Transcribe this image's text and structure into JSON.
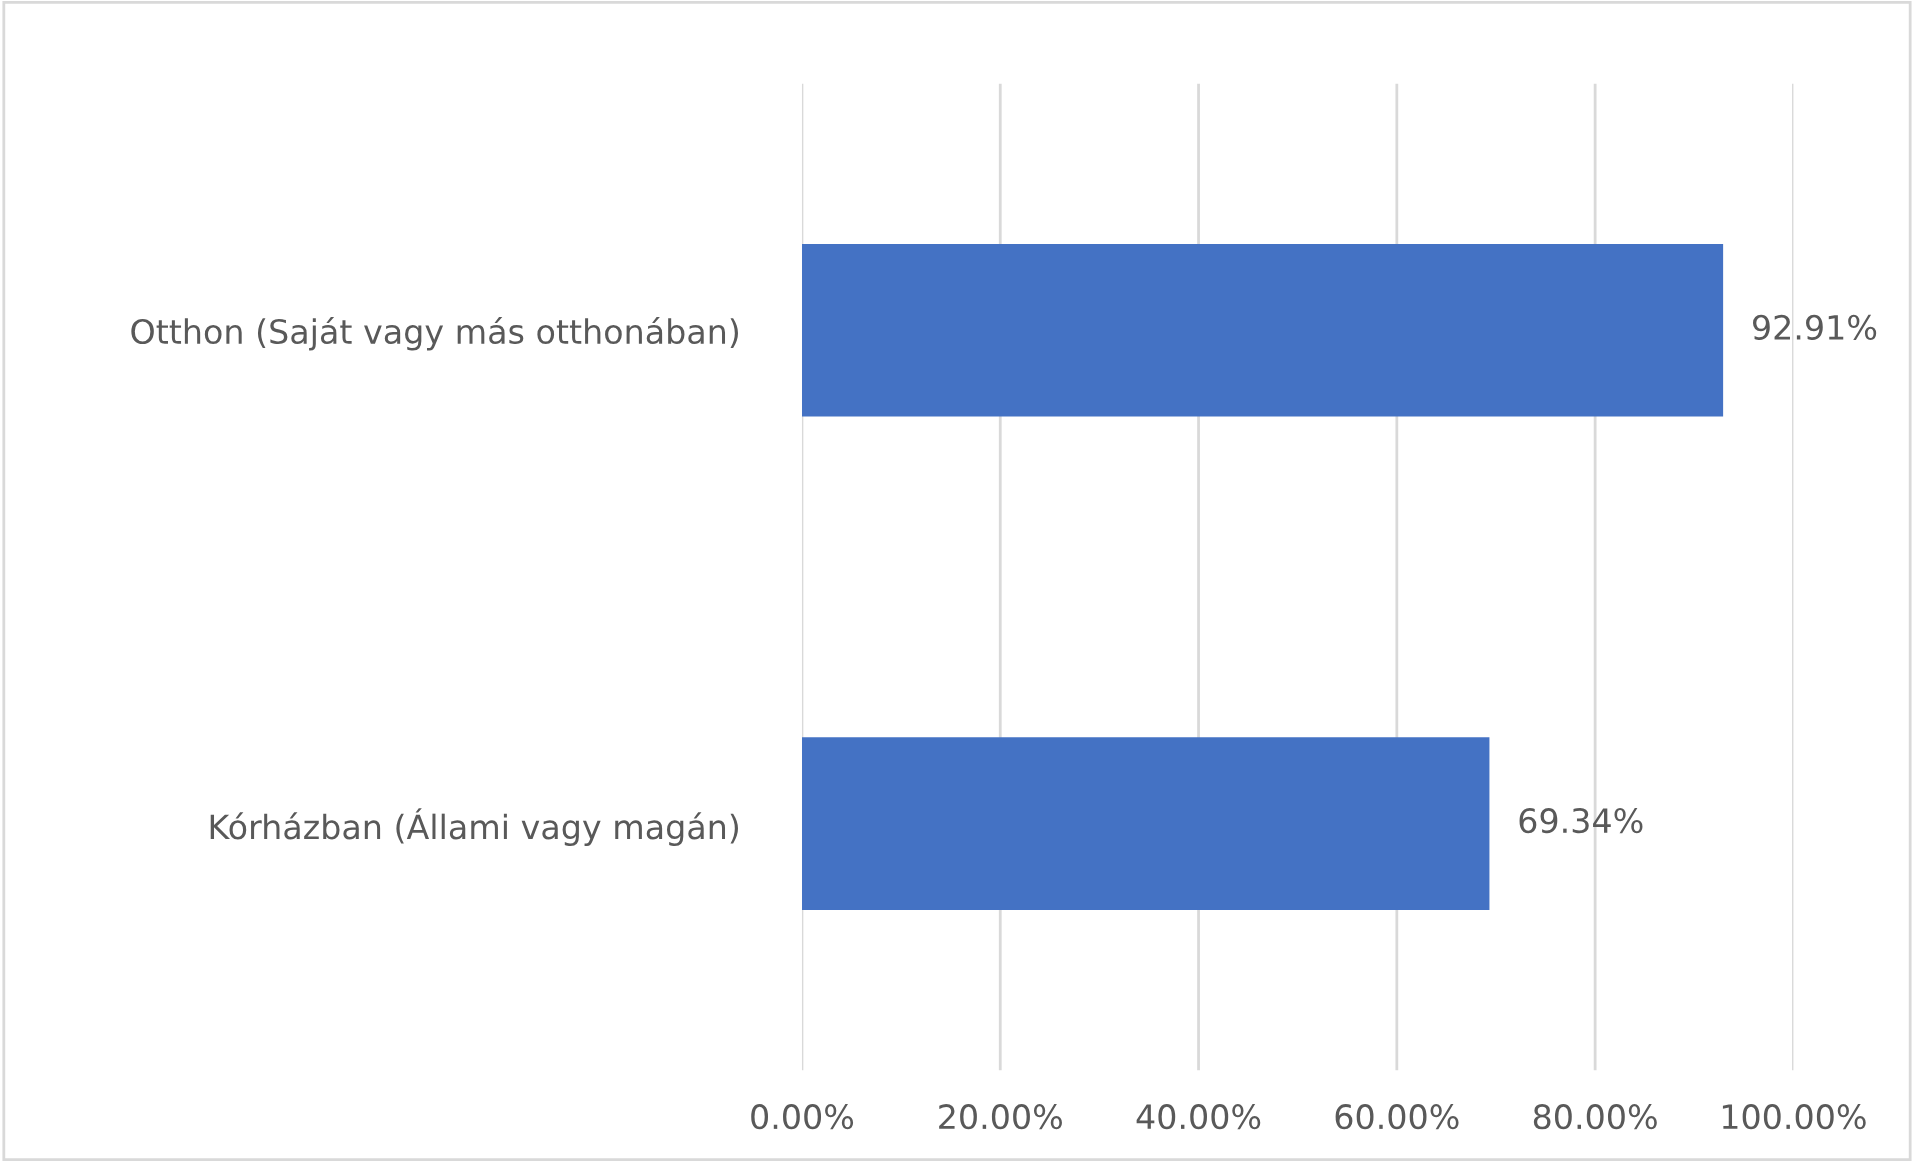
{
  "chart_data": {
    "type": "bar",
    "orientation": "horizontal",
    "categories": [
      "Otthon (Saját vagy más otthonában)",
      "Kórházban (Állami vagy magán)"
    ],
    "values": [
      92.91,
      69.34
    ],
    "color": "#4472c4",
    "value_labels": [
      "92.91%",
      "69.34%"
    ],
    "xlim": [
      0,
      100
    ],
    "xticks": [
      {
        "value": 0,
        "label": "0.00%"
      },
      {
        "value": 20,
        "label": "20.00%"
      },
      {
        "value": 40,
        "label": "40.00%"
      },
      {
        "value": 60,
        "label": "60.00%"
      },
      {
        "value": 80,
        "label": "80.00%"
      },
      {
        "value": 100,
        "label": "100.00%"
      }
    ],
    "grid": "x",
    "legend": false
  }
}
